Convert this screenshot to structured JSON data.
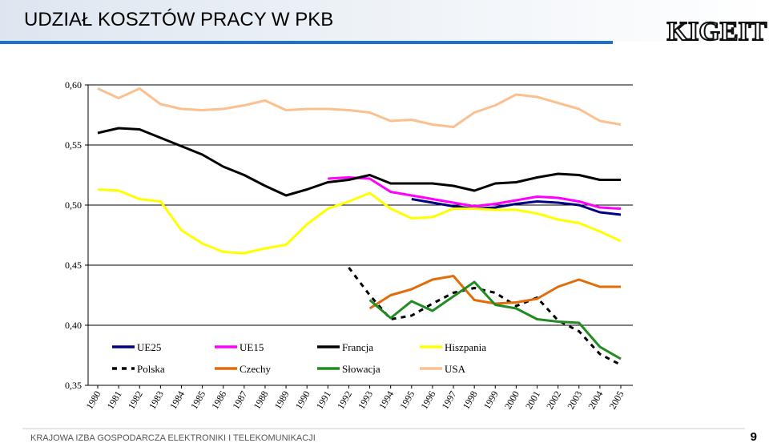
{
  "header": {
    "title": "UDZIAŁ KOSZTÓW PRACY W PKB",
    "logo": "KIGEIT"
  },
  "footer": {
    "text": "KRAJOWA IZBA GOSPODARCZA ELEKTRONIKI I TELEKOMUNIKACJI",
    "page": "9"
  },
  "chart_data": {
    "type": "line",
    "categories": [
      "1980",
      "1981",
      "1982",
      "1983",
      "1984",
      "1985",
      "1986",
      "1987",
      "1988",
      "1989",
      "1990",
      "1991",
      "1992",
      "1993",
      "1994",
      "1995",
      "1996",
      "1997",
      "1998",
      "1999",
      "2000",
      "2001",
      "2002",
      "2003",
      "2004",
      "2005"
    ],
    "ylim": [
      0.35,
      0.6
    ],
    "yticks": [
      {
        "value": 0.35,
        "label": "0,35"
      },
      {
        "value": 0.4,
        "label": "0,40"
      },
      {
        "value": 0.45,
        "label": "0,45"
      },
      {
        "value": 0.5,
        "label": "0,50"
      },
      {
        "value": 0.55,
        "label": "0,55"
      },
      {
        "value": 0.6,
        "label": "0,60"
      }
    ],
    "grid": true,
    "legend": "inside-bottom",
    "series": [
      {
        "name": "UE25",
        "color": "#000080",
        "values": [
          null,
          null,
          null,
          null,
          null,
          null,
          null,
          null,
          null,
          null,
          null,
          null,
          null,
          null,
          null,
          0.505,
          0.502,
          0.499,
          0.497,
          0.498,
          0.501,
          0.503,
          0.502,
          0.5,
          0.494,
          0.492
        ]
      },
      {
        "name": "UE15",
        "color": "#ff00ff",
        "values": [
          null,
          null,
          null,
          null,
          null,
          null,
          null,
          null,
          null,
          null,
          null,
          0.522,
          0.523,
          0.522,
          0.511,
          0.508,
          0.505,
          0.502,
          0.499,
          0.501,
          0.504,
          0.507,
          0.506,
          0.503,
          0.498,
          0.497
        ]
      },
      {
        "name": "Francja",
        "color": "#000000",
        "values": [
          0.56,
          0.564,
          0.563,
          0.556,
          0.549,
          0.542,
          0.532,
          0.525,
          0.516,
          0.508,
          0.513,
          0.519,
          0.521,
          0.525,
          0.518,
          0.518,
          0.518,
          0.516,
          0.512,
          0.518,
          0.519,
          0.523,
          0.526,
          0.525,
          0.521,
          0.521
        ]
      },
      {
        "name": "Hiszpania",
        "color": "#ffff00",
        "values": [
          0.513,
          0.512,
          0.505,
          0.503,
          0.479,
          0.468,
          0.461,
          0.46,
          0.464,
          0.467,
          0.484,
          0.497,
          0.503,
          0.51,
          0.497,
          0.489,
          0.49,
          0.497,
          0.497,
          0.496,
          0.496,
          0.493,
          0.488,
          0.485,
          0.478,
          0.47
        ]
      },
      {
        "name": "Polska",
        "color": "#000000",
        "dashed": true,
        "values": [
          null,
          null,
          null,
          null,
          null,
          null,
          null,
          null,
          null,
          null,
          null,
          null,
          0.448,
          0.425,
          0.405,
          0.408,
          0.418,
          0.427,
          0.431,
          0.427,
          0.416,
          0.423,
          0.404,
          0.395,
          0.376,
          0.367
        ]
      },
      {
        "name": "Czechy",
        "color": "#e36c0a",
        "values": [
          null,
          null,
          null,
          null,
          null,
          null,
          null,
          null,
          null,
          null,
          null,
          null,
          null,
          0.414,
          0.425,
          0.43,
          0.438,
          0.441,
          0.421,
          0.418,
          0.419,
          0.422,
          0.432,
          0.438,
          0.432,
          0.432
        ]
      },
      {
        "name": "Słowacja",
        "color": "#228b22",
        "values": [
          null,
          null,
          null,
          null,
          null,
          null,
          null,
          null,
          null,
          null,
          null,
          null,
          null,
          0.421,
          0.406,
          0.42,
          0.412,
          0.424,
          0.436,
          0.417,
          0.414,
          0.405,
          0.403,
          0.402,
          0.382,
          0.372
        ]
      },
      {
        "name": "USA",
        "color": "#fac090",
        "values": [
          0.597,
          0.589,
          0.597,
          0.584,
          0.58,
          0.579,
          0.58,
          0.583,
          0.587,
          0.579,
          0.58,
          0.58,
          0.579,
          0.577,
          0.57,
          0.571,
          0.567,
          0.565,
          0.577,
          0.583,
          0.592,
          0.59,
          0.585,
          0.58,
          0.57,
          0.567
        ]
      }
    ]
  }
}
